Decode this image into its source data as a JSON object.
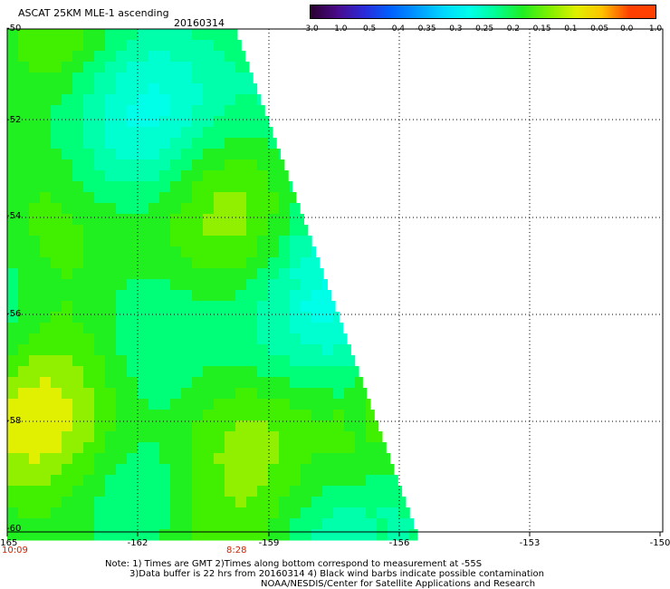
{
  "header": {
    "title": "ASCAT 25KM MLE-1 ascending",
    "date": "20160314"
  },
  "colorbar": {
    "labels": [
      "-3.0",
      "-1.0",
      "-0.5",
      "-0.4",
      "-0.35",
      "-0.3",
      "-0.25",
      "-0.2",
      "-0.15",
      "-0.1",
      "-0.05",
      "0.0",
      "1.0"
    ],
    "colors": [
      "#2a0030",
      "#4a0a8a",
      "#2a2ad8",
      "#0060ff",
      "#0098ff",
      "#00d8ff",
      "#00ffe8",
      "#00ff90",
      "#20ee20",
      "#80f000",
      "#e0f000",
      "#ffc000",
      "#ff4000"
    ]
  },
  "map": {
    "lat_labels": [
      "-50",
      "-52",
      "-54",
      "-56",
      "-58",
      "-60"
    ],
    "lon_labels": [
      "-165",
      "-162",
      "-159",
      "-156",
      "-153",
      "-150"
    ],
    "times": [
      "10:09",
      "8:28"
    ]
  },
  "notes": {
    "line1": "Note: 1) Times are GMT 2)Times along bottom correspond to measurement at -55S",
    "line2": "3)Data buffer is 22 hrs from 20160314 4) Black wind barbs indicate possible contamination",
    "line3": "NOAA/NESDIS/Center for Satellite Applications and Research"
  }
}
